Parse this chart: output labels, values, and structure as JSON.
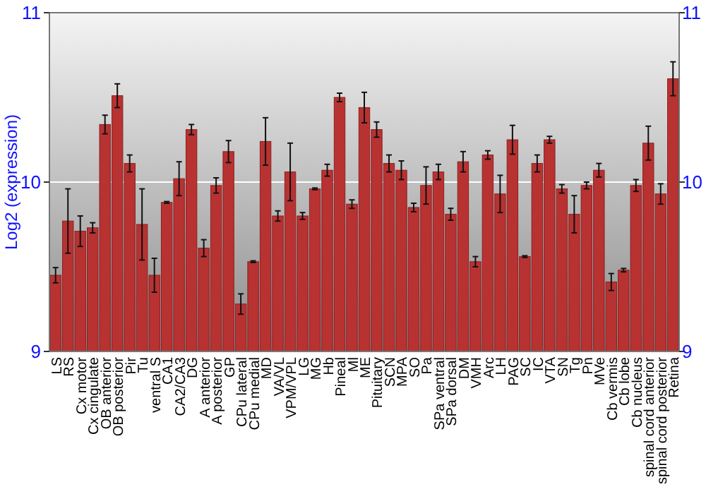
{
  "chart_data": {
    "type": "bar",
    "ylabel": "Log2 (expression)",
    "categories": [
      "LS",
      "RS",
      "Cx motor",
      "Cx cingulate",
      "OB anterior",
      "OB posterior",
      "Pir",
      "Tu",
      "ventral S",
      "CA1",
      "CA2/CA3",
      "DG",
      "A anterior",
      "A posterior",
      "GP",
      "CPu lateral",
      "CPu medial",
      "MD",
      "VA/VL",
      "VPM/VPL",
      "LG",
      "MG",
      "Hb",
      "Pineal",
      "Ml",
      "ME",
      "Pituitary",
      "SCN",
      "MPA",
      "SO",
      "Pa",
      "SPa ventral",
      "SPa dorsal",
      "DM",
      "VMH",
      "Arc",
      "LH",
      "PAG",
      "SC",
      "IC",
      "VTA",
      "SN",
      "Tg",
      "Pn",
      "MVe",
      "Cb vermis",
      "Cb lobe",
      "Cb nucleus",
      "spinal cord anterior",
      "spinal cord posterior",
      "Retina"
    ],
    "values": [
      9.45,
      9.77,
      9.71,
      9.73,
      10.34,
      10.51,
      10.11,
      9.75,
      9.45,
      9.88,
      10.02,
      10.31,
      9.61,
      9.98,
      10.18,
      9.28,
      9.53,
      10.24,
      9.8,
      10.06,
      9.8,
      9.96,
      10.07,
      10.5,
      9.87,
      10.44,
      10.31,
      10.11,
      10.07,
      9.85,
      9.98,
      10.06,
      9.81,
      10.12,
      9.53,
      10.16,
      9.93,
      10.25,
      9.56,
      10.11,
      10.25,
      9.96,
      9.81,
      9.98,
      10.07,
      9.41,
      9.48,
      9.98,
      10.23,
      9.93,
      10.61
    ],
    "errors": [
      0.045,
      0.19,
      0.09,
      0.03,
      0.055,
      0.07,
      0.05,
      0.21,
      0.1,
      0.005,
      0.1,
      0.03,
      0.05,
      0.045,
      0.065,
      0.06,
      0.005,
      0.14,
      0.03,
      0.17,
      0.02,
      0.005,
      0.035,
      0.025,
      0.025,
      0.09,
      0.045,
      0.05,
      0.055,
      0.025,
      0.11,
      0.045,
      0.035,
      0.06,
      0.03,
      0.025,
      0.11,
      0.085,
      0.005,
      0.05,
      0.02,
      0.025,
      0.11,
      0.02,
      0.04,
      0.05,
      0.01,
      0.035,
      0.1,
      0.06,
      0.1
    ],
    "color": "#b83232",
    "ylim": [
      9,
      11
    ],
    "yticks": [
      9,
      10,
      11
    ],
    "y2lim": [
      9,
      11
    ],
    "y2ticks": [
      9,
      10,
      11
    ],
    "grid": "y"
  }
}
